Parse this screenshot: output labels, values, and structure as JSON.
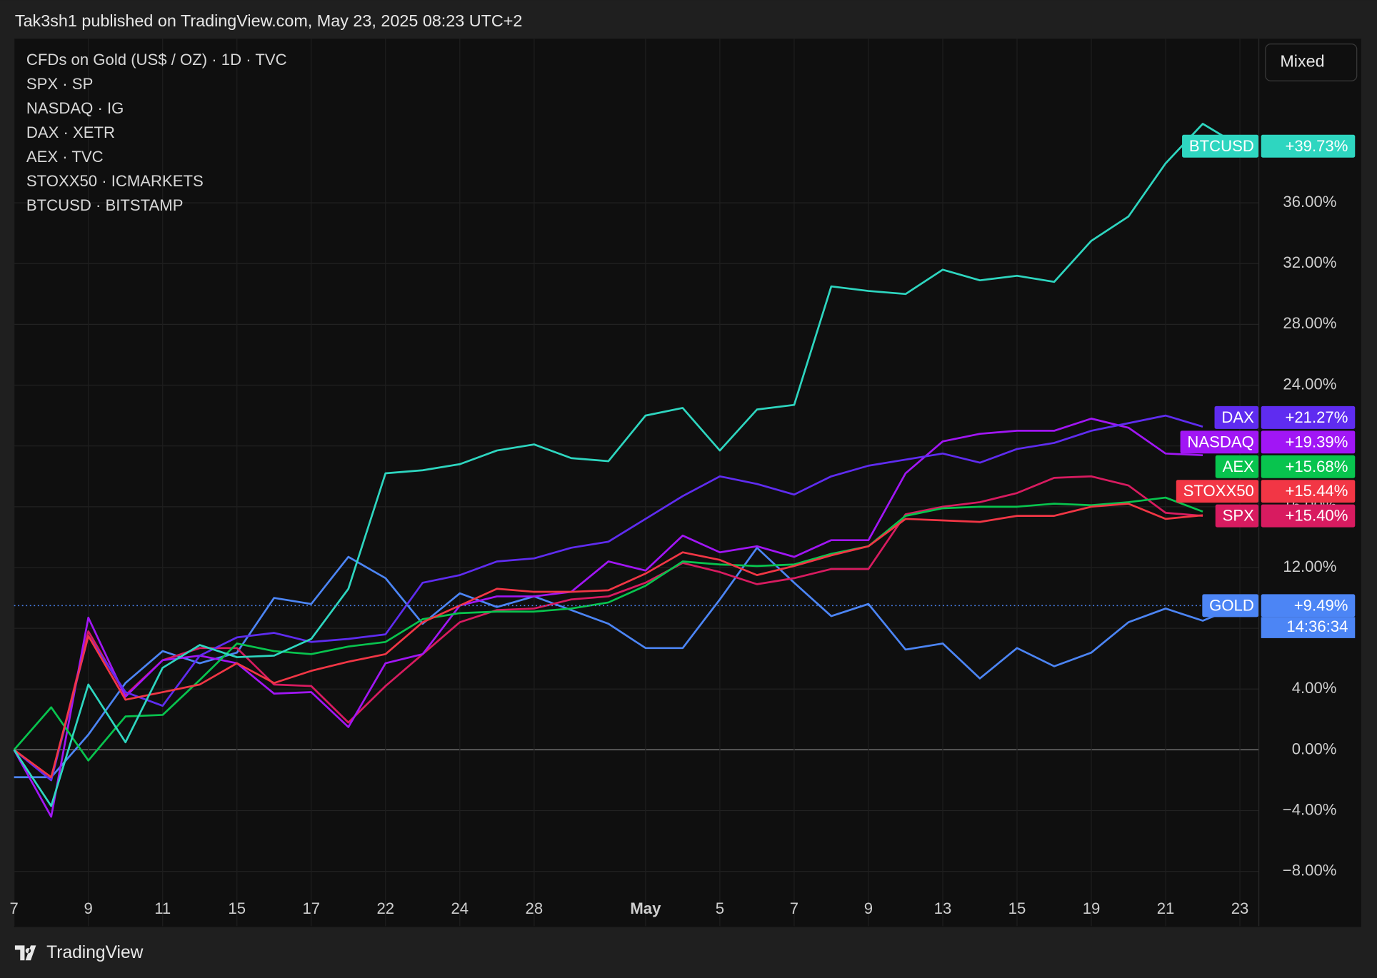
{
  "header": {
    "publisher": "Tak3sh1 published on TradingView.com, May 23, 2025 08:23 UTC+2",
    "brand": "TradingView",
    "button": "Mixed"
  },
  "chart_data": {
    "type": "line",
    "categories": [
      "7",
      null,
      "9",
      null,
      "11",
      null,
      "15",
      null,
      "17",
      null,
      "22",
      null,
      "24",
      null,
      "28",
      null,
      null,
      "May",
      null,
      "5",
      null,
      "7",
      null,
      "9",
      null,
      "13",
      null,
      "15",
      null,
      "19",
      null,
      "21",
      null,
      "23"
    ],
    "ylim": [
      -11.6,
      46.8
    ],
    "yticks": [
      {
        "value": -8,
        "label": "−8.00%"
      },
      {
        "value": -4,
        "label": "−4.00%"
      },
      {
        "value": 0,
        "label": "0.00%"
      },
      {
        "value": 4,
        "label": "4.00%"
      },
      {
        "value": 8,
        "label": "8.00%"
      },
      {
        "value": 12,
        "label": "12.00%"
      },
      {
        "value": 16,
        "label": "16.00%"
      },
      {
        "value": 20,
        "label": "20.00%"
      },
      {
        "value": 24,
        "label": "24.00%"
      },
      {
        "value": 28,
        "label": "28.00%"
      },
      {
        "value": 32,
        "label": "32.00%"
      },
      {
        "value": 36,
        "label": "36.00%"
      }
    ],
    "grid": true,
    "series": [
      {
        "name": "GOLD",
        "legend": "CFDs on Gold (US$ / OZ) · 1D · TVC",
        "color": "#4c85f5",
        "end_label": "+9.49%",
        "countdown": "14:36:34",
        "values": [
          -1.8,
          -1.8,
          1.0,
          4.4,
          6.5,
          5.7,
          6.4,
          10.0,
          9.6,
          12.7,
          11.3,
          8.3,
          10.3,
          9.4,
          10.1,
          9.2,
          8.3,
          6.7,
          6.7,
          9.9,
          13.3,
          11.0,
          8.8,
          9.6,
          6.6,
          7.0,
          4.7,
          6.7,
          5.5,
          6.4,
          8.4,
          9.3,
          8.5,
          9.49
        ]
      },
      {
        "name": "SPX",
        "legend": "SPX · SP",
        "color": "#d81b60",
        "end_label": "+15.40%",
        "values": [
          0,
          -2.0,
          7.8,
          3.6,
          5.9,
          6.7,
          6.7,
          4.3,
          4.2,
          1.8,
          4.2,
          6.3,
          8.4,
          9.2,
          9.3,
          9.9,
          10.1,
          11.0,
          12.3,
          11.7,
          10.9,
          11.3,
          11.9,
          11.9,
          15.5,
          16.0,
          16.3,
          16.9,
          17.9,
          18.0,
          17.4,
          15.6,
          15.4,
          null
        ]
      },
      {
        "name": "NASDAQ",
        "legend": "NASDAQ · IG",
        "color": "#a116f5",
        "end_label": "+19.39%",
        "values": [
          0,
          -4.4,
          8.7,
          3.5,
          5.9,
          6.2,
          5.7,
          3.7,
          3.8,
          1.5,
          5.7,
          6.3,
          9.5,
          10.1,
          10.1,
          10.4,
          12.4,
          11.8,
          14.1,
          13.0,
          13.4,
          12.7,
          13.8,
          13.8,
          18.2,
          20.3,
          20.8,
          21.0,
          21.0,
          21.8,
          21.2,
          19.5,
          19.39,
          null
        ]
      },
      {
        "name": "DAX",
        "legend": "DAX · XETR",
        "color": "#5f2cf0",
        "end_label": "+21.27%",
        "values": [
          0,
          -2.0,
          7.5,
          3.8,
          2.9,
          6.2,
          7.4,
          7.7,
          7.1,
          7.3,
          7.6,
          11.0,
          11.5,
          12.4,
          12.6,
          13.3,
          13.7,
          15.2,
          16.7,
          18.0,
          17.5,
          16.8,
          18.0,
          18.7,
          19.1,
          19.5,
          18.9,
          19.8,
          20.2,
          21.0,
          21.5,
          22.0,
          21.27,
          null
        ]
      },
      {
        "name": "AEX",
        "legend": "AEX · TVC",
        "color": "#08c44e",
        "end_label": "+15.68%",
        "values": [
          0,
          2.8,
          -0.7,
          2.2,
          2.3,
          4.6,
          7.0,
          6.5,
          6.3,
          6.8,
          7.1,
          8.6,
          9.0,
          9.1,
          9.1,
          9.3,
          9.7,
          10.8,
          12.4,
          12.2,
          12.1,
          12.2,
          12.9,
          13.4,
          15.4,
          15.9,
          16.0,
          16.0,
          16.2,
          16.1,
          16.3,
          16.6,
          15.68,
          null
        ]
      },
      {
        "name": "STOXX50",
        "legend": "STOXX50 · ICMARKETS",
        "color": "#f23645",
        "end_label": "+15.44%",
        "values": [
          0,
          -1.8,
          7.5,
          3.3,
          3.8,
          4.3,
          5.7,
          4.4,
          5.2,
          5.8,
          6.3,
          8.4,
          9.5,
          10.6,
          10.4,
          10.4,
          10.5,
          11.6,
          13.0,
          12.5,
          11.5,
          12.1,
          12.8,
          13.4,
          15.2,
          15.1,
          15.0,
          15.4,
          15.4,
          16.0,
          16.2,
          15.2,
          15.44,
          null
        ]
      },
      {
        "name": "BTCUSD",
        "legend": "BTCUSD · BITSTAMP",
        "color": "#2ed6c0",
        "end_label": "+39.73%",
        "values": [
          0,
          -3.7,
          4.3,
          0.5,
          5.4,
          6.9,
          6.1,
          6.2,
          7.3,
          10.6,
          18.2,
          18.4,
          18.8,
          19.7,
          20.1,
          19.2,
          19.0,
          22.0,
          22.5,
          19.7,
          22.4,
          22.7,
          30.5,
          30.2,
          30.0,
          31.6,
          30.9,
          31.2,
          30.8,
          33.5,
          35.1,
          38.6,
          41.2,
          39.73
        ]
      }
    ]
  }
}
